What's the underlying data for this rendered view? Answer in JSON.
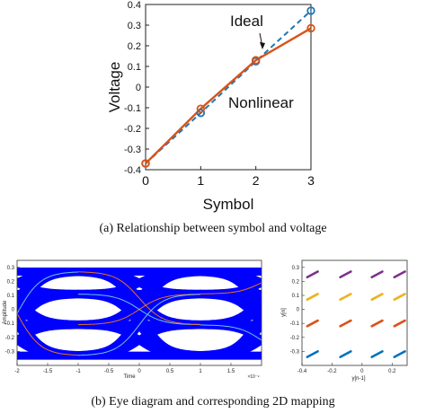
{
  "captions": {
    "a": "(a) Relationship between symbol and voltage",
    "b": "(b) Eye diagram and corresponding 2D mapping"
  },
  "colors": {
    "ideal": "#1f77b4",
    "nonlinear": "#d95319",
    "eye_fill": "#0000ff",
    "trace_orange": "#e8731c",
    "trace_cyan": "#6fc6d9",
    "trace_purple": "#7e2f8e",
    "trace_yellow": "#edb120",
    "trace_darkorange": "#d95319",
    "trace_blue": "#0072bd"
  },
  "chart_data": [
    {
      "type": "line",
      "xlabel": "Symbol",
      "ylabel": "Voltage",
      "xlim": [
        0,
        3
      ],
      "ylim": [
        -0.4,
        0.4
      ],
      "x_ticks": [
        "0",
        "1",
        "2",
        "3"
      ],
      "y_ticks": [
        "-0.4",
        "-0.3",
        "-0.2",
        "-0.1",
        "0",
        "0.1",
        "0.2",
        "0.3",
        "0.4"
      ],
      "x": [
        0,
        1,
        2,
        3
      ],
      "series": [
        {
          "name": "Ideal",
          "style": "dashed-markers",
          "values": [
            -0.37,
            -0.125,
            0.125,
            0.37
          ]
        },
        {
          "name": "Nonlinear",
          "style": "solid-markers",
          "values": [
            -0.37,
            -0.105,
            0.13,
            0.285
          ]
        }
      ],
      "annotations": [
        "Ideal",
        "Nonlinear"
      ],
      "grid": false
    },
    {
      "type": "area",
      "title": "",
      "xlabel": "Time",
      "ylabel": "Amplitude",
      "x_exponent": "×10⁻⁹",
      "xlim": [
        -2,
        2
      ],
      "ylim": [
        -0.4,
        0.35
      ],
      "x_ticks": [
        "-2",
        "-1.5",
        "-1",
        "-0.5",
        "0",
        "0.5",
        "1",
        "1.5"
      ],
      "y_ticks": [
        "0.3",
        "0.2",
        "0.1",
        "0",
        "-0.1",
        "-0.2",
        "-0.3"
      ],
      "levels": [
        -0.33,
        -0.11,
        0.11,
        0.27
      ],
      "grid": false
    },
    {
      "type": "scatter",
      "xlabel": "y[n-1]",
      "ylabel": "y[n]",
      "xlim": [
        -0.4,
        0.3
      ],
      "ylim": [
        -0.4,
        0.35
      ],
      "x_ticks": [
        "-0.4",
        "-0.2",
        "0",
        "0.2"
      ],
      "y_ticks": [
        "0.3",
        "0.2",
        "0.1",
        "0",
        "-0.1",
        "-0.2",
        "-0.3"
      ],
      "clusters_x": [
        -0.33,
        -0.11,
        0.1,
        0.25
      ],
      "series": [
        {
          "y": 0.25,
          "color": "#7e2f8e"
        },
        {
          "y": 0.09,
          "color": "#edb120"
        },
        {
          "y": -0.1,
          "color": "#d95319"
        },
        {
          "y": -0.32,
          "color": "#0072bd"
        }
      ],
      "grid": false
    }
  ]
}
